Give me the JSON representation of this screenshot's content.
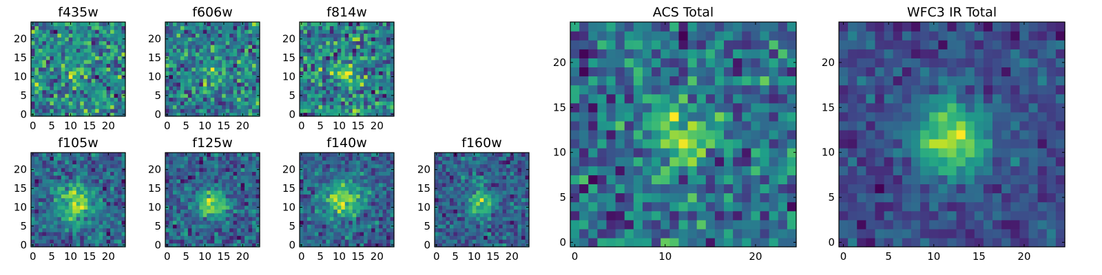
{
  "chart_data": [
    {
      "id": "f435w",
      "type": "heatmap",
      "title": "f435w",
      "colormap": "viridis",
      "xlim": [
        0,
        24
      ],
      "ylim": [
        0,
        24
      ],
      "xticks": [
        0,
        5,
        10,
        15,
        20
      ],
      "yticks": [
        0,
        5,
        10,
        15,
        20
      ],
      "source": {
        "row": 1,
        "col": 1
      },
      "noise": 1.0,
      "peak": {
        "x": 11.5,
        "y": 11.5,
        "sigma": 3.0,
        "amp": 0.25
      }
    },
    {
      "id": "f606w",
      "type": "heatmap",
      "title": "f606w",
      "colormap": "viridis",
      "xlim": [
        0,
        24
      ],
      "ylim": [
        0,
        24
      ],
      "xticks": [
        0,
        5,
        10,
        15,
        20
      ],
      "yticks": [
        0,
        5,
        10,
        15,
        20
      ],
      "source": {
        "row": 1,
        "col": 2
      },
      "noise": 1.0,
      "peak": {
        "x": 12,
        "y": 11,
        "sigma": 2.5,
        "amp": 0.4
      }
    },
    {
      "id": "f814w",
      "type": "heatmap",
      "title": "f814w",
      "colormap": "viridis",
      "xlim": [
        0,
        24
      ],
      "ylim": [
        0,
        24
      ],
      "xticks": [
        0,
        5,
        10,
        15,
        20
      ],
      "yticks": [
        0,
        5,
        10,
        15,
        20
      ],
      "source": {
        "row": 1,
        "col": 3
      },
      "noise": 1.0,
      "peak": {
        "x": 12,
        "y": 11,
        "sigma": 2.5,
        "amp": 0.55
      }
    },
    {
      "id": "f105w",
      "type": "heatmap",
      "title": "f105w",
      "colormap": "viridis",
      "xlim": [
        0,
        24
      ],
      "ylim": [
        0,
        24
      ],
      "xticks": [
        0,
        5,
        10,
        15,
        20
      ],
      "yticks": [
        0,
        5,
        10,
        15,
        20
      ],
      "source": {
        "row": 2,
        "col": 1
      },
      "noise": 0.6,
      "peak": {
        "x": 11.5,
        "y": 11,
        "sigma": 3.5,
        "amp": 0.85
      }
    },
    {
      "id": "f125w",
      "type": "heatmap",
      "title": "f125w",
      "colormap": "viridis",
      "xlim": [
        0,
        24
      ],
      "ylim": [
        0,
        24
      ],
      "xticks": [
        0,
        5,
        10,
        15,
        20
      ],
      "yticks": [
        0,
        5,
        10,
        15,
        20
      ],
      "source": {
        "row": 2,
        "col": 2
      },
      "noise": 0.6,
      "peak": {
        "x": 12,
        "y": 11,
        "sigma": 3.0,
        "amp": 0.8
      }
    },
    {
      "id": "f140w",
      "type": "heatmap",
      "title": "f140w",
      "colormap": "viridis",
      "xlim": [
        0,
        24
      ],
      "ylim": [
        0,
        24
      ],
      "xticks": [
        0,
        5,
        10,
        15,
        20
      ],
      "yticks": [
        0,
        5,
        10,
        15,
        20
      ],
      "source": {
        "row": 2,
        "col": 3
      },
      "noise": 0.6,
      "peak": {
        "x": 11,
        "y": 12,
        "sigma": 3.5,
        "amp": 0.9
      }
    },
    {
      "id": "f160w",
      "type": "heatmap",
      "title": "f160w",
      "colormap": "viridis",
      "xlim": [
        0,
        24
      ],
      "ylim": [
        0,
        24
      ],
      "xticks": [
        0,
        5,
        10,
        15,
        20
      ],
      "yticks": [
        0,
        5,
        10,
        15,
        20
      ],
      "source": {
        "row": 2,
        "col": 4
      },
      "noise": 0.6,
      "peak": {
        "x": 12,
        "y": 11.5,
        "sigma": 2.5,
        "amp": 0.9
      }
    },
    {
      "id": "acs-total",
      "type": "heatmap",
      "title": "ACS Total",
      "colormap": "viridis",
      "xlim": [
        0,
        24
      ],
      "ylim": [
        0,
        24
      ],
      "xticks": [
        0,
        10,
        20
      ],
      "yticks": [
        0,
        5,
        10,
        15,
        20
      ],
      "source": {
        "row": 1,
        "col": 5
      },
      "noise": 0.8,
      "peak": {
        "x": 11.5,
        "y": 12,
        "sigma": 2.5,
        "amp": 0.75
      }
    },
    {
      "id": "wfc3-ir-total",
      "type": "heatmap",
      "title": "WFC3 IR Total",
      "colormap": "viridis",
      "xlim": [
        0,
        24
      ],
      "ylim": [
        0,
        24
      ],
      "xticks": [
        0,
        5,
        10,
        15,
        20
      ],
      "yticks": [
        0,
        5,
        10,
        15,
        20
      ],
      "source": {
        "row": 1,
        "col": 6
      },
      "noise": 0.45,
      "peak": {
        "x": 12,
        "y": 11.5,
        "sigma": 3.0,
        "amp": 1.1
      }
    }
  ]
}
